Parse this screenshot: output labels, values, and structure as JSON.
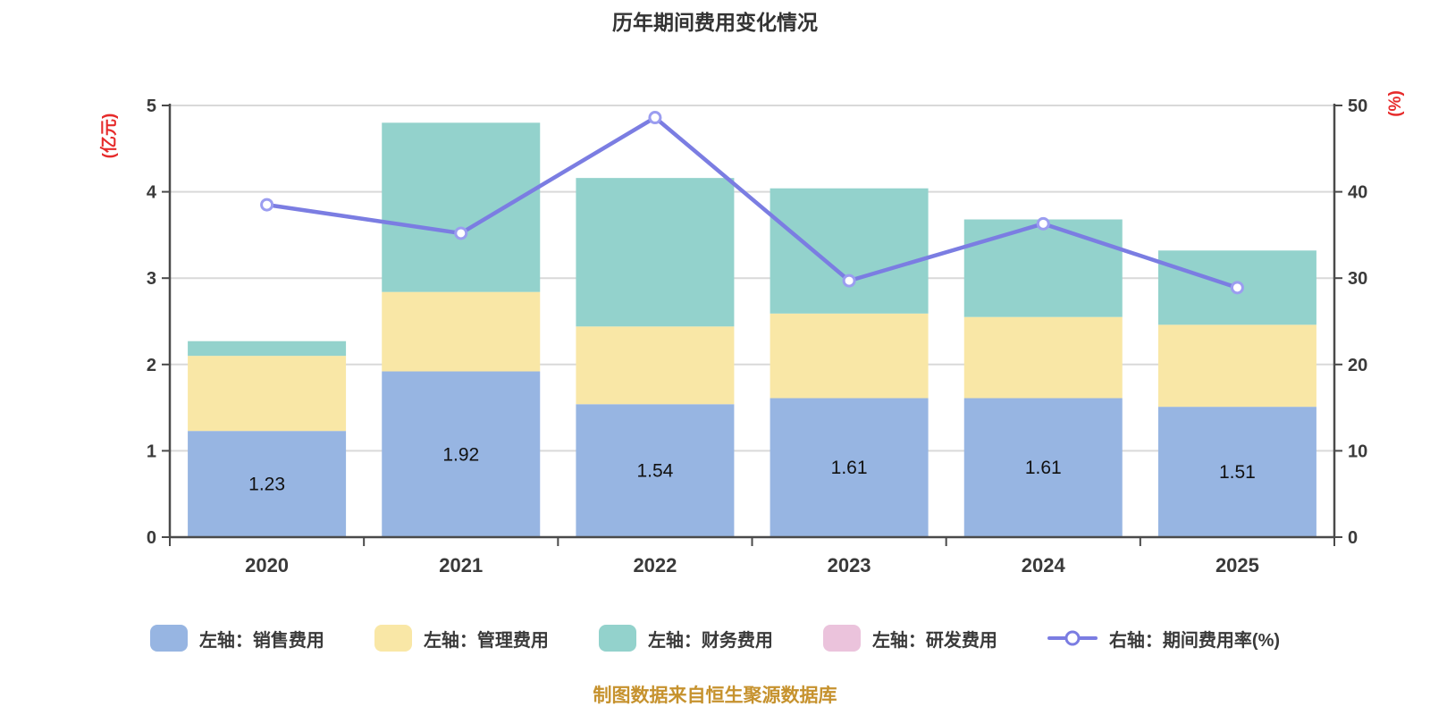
{
  "title": "历年期间费用变化情况",
  "source_note": "制图数据来自恒生聚源数据库",
  "left_axis": {
    "label": "(亿元)",
    "min": 0,
    "max": 5,
    "ticks": [
      0,
      1,
      2,
      3,
      4,
      5
    ],
    "label_color": "#e62b2b"
  },
  "right_axis": {
    "label": "(%)",
    "min": 0,
    "max": 50,
    "ticks": [
      0,
      10,
      20,
      30,
      40,
      50
    ],
    "label_color": "#e62b2b"
  },
  "chart_data": {
    "type": "bar",
    "subtype": "stacked-bar-with-line",
    "title": "历年期间费用变化情况",
    "categories": [
      "2020",
      "2021",
      "2022",
      "2023",
      "2024",
      "2025"
    ],
    "series": [
      {
        "name": "左轴：销售费用",
        "kind": "bar",
        "axis": "left",
        "color": "#97b5e2",
        "values": [
          1.23,
          1.92,
          1.54,
          1.61,
          1.61,
          1.51
        ]
      },
      {
        "name": "左轴：管理费用",
        "kind": "bar",
        "axis": "left",
        "color": "#f9e7a6",
        "values": [
          0.87,
          0.92,
          0.9,
          0.98,
          0.94,
          0.95
        ]
      },
      {
        "name": "左轴：财务费用",
        "kind": "bar",
        "axis": "left",
        "color": "#93d2cc",
        "values": [
          0.17,
          1.96,
          1.72,
          1.45,
          1.13,
          0.86
        ]
      },
      {
        "name": "左轴：研发费用",
        "kind": "bar",
        "axis": "left",
        "color": "#ebc3dc",
        "values": [
          0,
          0,
          0,
          0,
          0,
          0
        ]
      },
      {
        "name": "右轴：期间费用率(%)",
        "kind": "line",
        "axis": "right",
        "color": "#7b7de2",
        "values": [
          38.5,
          35.2,
          48.6,
          29.7,
          36.3,
          28.9
        ]
      }
    ],
    "bar_labels": [
      "1.23",
      "1.92",
      "1.54",
      "1.61",
      "1.61",
      "1.51"
    ],
    "ylabel_left": "(亿元)",
    "ylabel_right": "(%)",
    "ylim_left": [
      0,
      5
    ],
    "ylim_right": [
      0,
      50
    ],
    "grid": true,
    "legend_position": "bottom"
  },
  "legend": [
    {
      "label": "左轴：销售费用",
      "color": "#97b5e2",
      "marker": "square"
    },
    {
      "label": "左轴：管理费用",
      "color": "#f9e7a6",
      "marker": "square"
    },
    {
      "label": "左轴：财务费用",
      "color": "#93d2cc",
      "marker": "square"
    },
    {
      "label": "左轴：研发费用",
      "color": "#ebc3dc",
      "marker": "square"
    },
    {
      "label": "右轴：期间费用率(%)",
      "color": "#7b7de2",
      "marker": "line-circle"
    }
  ],
  "colors": {
    "grid": "#d9d9d9",
    "axis": "#4a4a4a",
    "tick_text": "#3a3a3a",
    "bar_label": "#111111",
    "line": "#7b7de2",
    "marker_ring": "#9b9df0",
    "marker_fill": "#ffffff"
  }
}
